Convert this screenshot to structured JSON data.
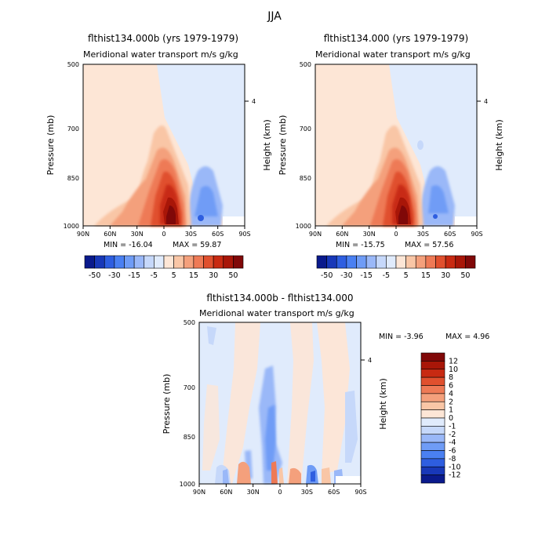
{
  "figure_title": "JJA",
  "colors": {
    "abs_scale": [
      "#0a1a8c",
      "#1838b8",
      "#2e5ee0",
      "#4a80f2",
      "#6f9cf6",
      "#9ab8f8",
      "#c6d8fa",
      "#e0ebfc",
      "#fde6d6",
      "#f9c6a6",
      "#f4a07c",
      "#ee7a56",
      "#e0502e",
      "#c82a12",
      "#a81608",
      "#800808"
    ],
    "diff_scale": [
      "#0a1a8c",
      "#1838b8",
      "#2e5ee0",
      "#4a80f2",
      "#6f9cf6",
      "#9ab8f8",
      "#c6d8fa",
      "#e0ebfc",
      "#fde6d6",
      "#f9c6a6",
      "#f4a07c",
      "#ee7a56",
      "#e0502e",
      "#c82a12",
      "#a81608",
      "#800808"
    ]
  },
  "chart_data": [
    {
      "type": "heatmap",
      "title": "flthist134.000b (yrs 1979-1979)",
      "subtitle": "Meridional water transport",
      "units": "m/s g/kg",
      "xlabel": "",
      "ylabel": "Pressure (mb)",
      "ylabel_right": "Height (km)",
      "x_ticks": [
        "90N",
        "60N",
        "30N",
        "0",
        "30S",
        "60S",
        "90S"
      ],
      "y_ticks": [
        "500",
        "700",
        "850",
        "1000"
      ],
      "right_ticks": [
        "4"
      ],
      "xlim": [
        90,
        -90
      ],
      "ylim": [
        1000,
        500
      ],
      "min_label": "MIN = -16.04",
      "max_label": "MAX =  59.87",
      "colorbar_labels": [
        "-50",
        "-30",
        "-15",
        "-5",
        "5",
        "15",
        "30",
        "50"
      ]
    },
    {
      "type": "heatmap",
      "title": "flthist134.000 (yrs 1979-1979)",
      "subtitle": "Meridional water transport",
      "units": "m/s g/kg",
      "xlabel": "",
      "ylabel": "Pressure (mb)",
      "ylabel_right": "Height (km)",
      "x_ticks": [
        "90N",
        "60N",
        "30N",
        "0",
        "30S",
        "60S",
        "90S"
      ],
      "y_ticks": [
        "500",
        "700",
        "850",
        "1000"
      ],
      "right_ticks": [
        "4"
      ],
      "xlim": [
        90,
        -90
      ],
      "ylim": [
        1000,
        500
      ],
      "min_label": "MIN = -15.75",
      "max_label": "MAX =  57.56",
      "colorbar_labels": [
        "-50",
        "-30",
        "-15",
        "-5",
        "5",
        "15",
        "30",
        "50"
      ]
    },
    {
      "type": "heatmap",
      "title": "flthist134.000b - flthist134.000",
      "subtitle": "Meridional water transport",
      "units": "m/s g/kg",
      "xlabel": "",
      "ylabel": "Pressure (mb)",
      "ylabel_right": "Height (km)",
      "x_ticks": [
        "90N",
        "60N",
        "30N",
        "0",
        "30S",
        "60S",
        "90S"
      ],
      "y_ticks": [
        "500",
        "700",
        "850",
        "1000"
      ],
      "right_ticks": [
        "4"
      ],
      "xlim": [
        90,
        -90
      ],
      "ylim": [
        1000,
        500
      ],
      "min_label": "MIN =   -3.96",
      "max_label": "MAX =   4.96",
      "colorbar_labels": [
        "12",
        "10",
        "8",
        "6",
        "4",
        "2",
        "1",
        "0",
        "-1",
        "-2",
        "-4",
        "-6",
        "-8",
        "-10",
        "-12"
      ]
    }
  ]
}
